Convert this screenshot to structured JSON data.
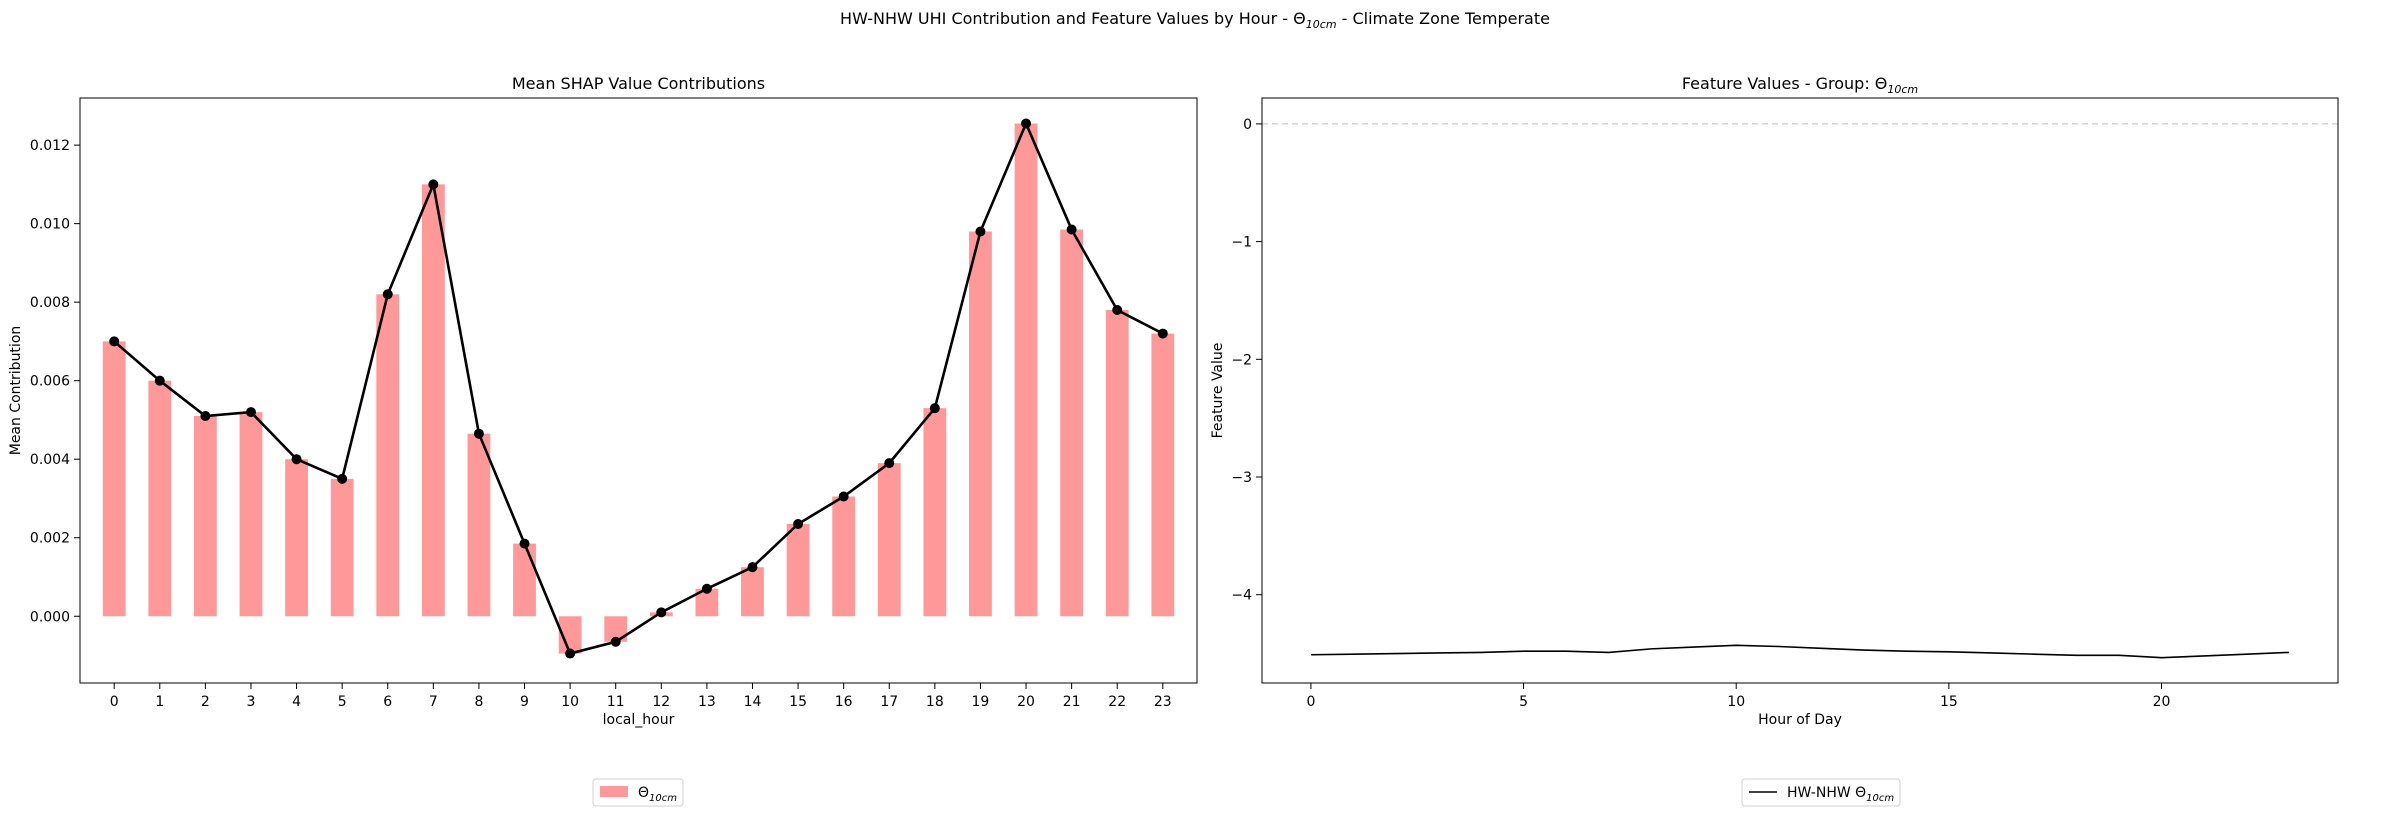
{
  "suptitle": {
    "main": "HW-NHW UHI Contribution and Feature Values by Hour - Θ",
    "sub": "10cm",
    "tail": " - Climate Zone Temperate"
  },
  "chart_data": [
    {
      "type": "bar",
      "title": "Mean SHAP Value Contributions",
      "xlabel": "local_hour",
      "ylabel": "Mean Contribution",
      "categories": [
        "0",
        "1",
        "2",
        "3",
        "4",
        "5",
        "6",
        "7",
        "8",
        "9",
        "10",
        "11",
        "12",
        "13",
        "14",
        "15",
        "16",
        "17",
        "18",
        "19",
        "20",
        "21",
        "22",
        "23"
      ],
      "series": [
        {
          "name": "Θ",
          "name_sub": "10cm",
          "kind": "bar",
          "color": "#ff9999",
          "values": [
            0.007,
            0.006,
            0.0051,
            0.0052,
            0.004,
            0.0035,
            0.0082,
            0.011,
            0.00465,
            0.00185,
            -0.00095,
            -0.00065,
            0.0001,
            0.0007,
            0.00125,
            0.00235,
            0.00305,
            0.0039,
            0.0053,
            0.0098,
            0.01255,
            0.00985,
            0.0078,
            0.0072
          ]
        },
        {
          "kind": "line-marker",
          "color": "#000000",
          "values": [
            0.007,
            0.006,
            0.0051,
            0.0052,
            0.004,
            0.0035,
            0.0082,
            0.011,
            0.00465,
            0.00185,
            -0.00095,
            -0.00065,
            0.0001,
            0.0007,
            0.00125,
            0.00235,
            0.00305,
            0.0039,
            0.0053,
            0.0098,
            0.01255,
            0.00985,
            0.0078,
            0.0072
          ]
        }
      ],
      "ylim": [
        -0.0017,
        0.0132
      ],
      "yticks": [
        0.0,
        0.002,
        0.004,
        0.006,
        0.008,
        0.01,
        0.012
      ],
      "ytick_labels": [
        "0.000",
        "0.002",
        "0.004",
        "0.006",
        "0.008",
        "0.010",
        "0.012"
      ],
      "legend": "lower-center"
    },
    {
      "type": "line",
      "title": "Feature Values - Group: Θ",
      "title_sub": "10cm",
      "xlabel": "Hour of Day",
      "ylabel": "Feature Value",
      "x": [
        0,
        1,
        2,
        3,
        4,
        5,
        6,
        7,
        8,
        9,
        10,
        11,
        12,
        13,
        14,
        15,
        16,
        17,
        18,
        19,
        20,
        21,
        22,
        23
      ],
      "series": [
        {
          "name": "HW-NHW Θ",
          "name_sub": "10cm",
          "color": "#000000",
          "values": [
            -4.51,
            -4.505,
            -4.5,
            -4.495,
            -4.49,
            -4.48,
            -4.48,
            -4.49,
            -4.46,
            -4.445,
            -4.43,
            -4.44,
            -4.455,
            -4.47,
            -4.48,
            -4.485,
            -4.495,
            -4.505,
            -4.515,
            -4.515,
            -4.535,
            -4.52,
            -4.505,
            -4.49
          ]
        }
      ],
      "reference_line": {
        "y": 0,
        "style": "dashed",
        "color": "#cccccc"
      },
      "xlim": [
        -1.15,
        24.15
      ],
      "ylim": [
        -4.75,
        0.22
      ],
      "xticks": [
        0,
        5,
        10,
        15,
        20
      ],
      "xtick_labels": [
        "0",
        "5",
        "10",
        "15",
        "20"
      ],
      "yticks": [
        0,
        -1,
        -2,
        -3,
        -4
      ],
      "ytick_labels": [
        "0",
        "−1",
        "−2",
        "−3",
        "−4"
      ],
      "legend": "lower-center"
    }
  ]
}
